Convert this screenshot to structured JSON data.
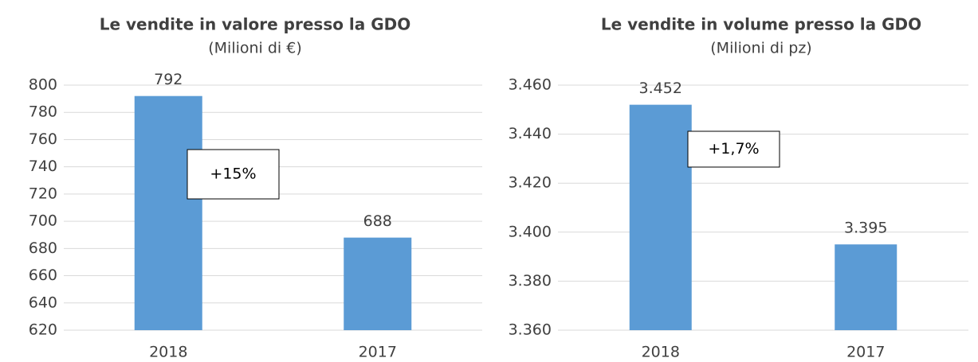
{
  "chart_data": [
    {
      "type": "bar",
      "title": "Le vendite in valore presso la GDO",
      "subtitle": "(Milioni di €)",
      "categories": [
        "2018",
        "2017"
      ],
      "values": [
        792,
        688
      ],
      "color": "#5b9bd5",
      "ylim": [
        620,
        800
      ],
      "yticks": [
        620,
        640,
        660,
        680,
        700,
        720,
        740,
        760,
        780,
        800
      ],
      "grid": true,
      "annotation": "+15%"
    },
    {
      "type": "bar",
      "title": "Le vendite in volume presso la GDO",
      "subtitle": "(Milioni di pz)",
      "categories": [
        "2018",
        "2017"
      ],
      "values": [
        3452,
        3395
      ],
      "value_labels": [
        "3.452",
        "3.395"
      ],
      "color": "#5b9bd5",
      "ylim": [
        3360,
        3460
      ],
      "yticks": [
        {
          "value": 3360,
          "label": "3.360"
        },
        {
          "value": 3380,
          "label": "3.380"
        },
        {
          "value": 3400,
          "label": "3.400"
        },
        {
          "value": 3420,
          "label": "3.420"
        },
        {
          "value": 3440,
          "label": "3.440"
        },
        {
          "value": 3460,
          "label": "3.460"
        }
      ],
      "grid": true,
      "annotation": "+1,7%"
    }
  ]
}
